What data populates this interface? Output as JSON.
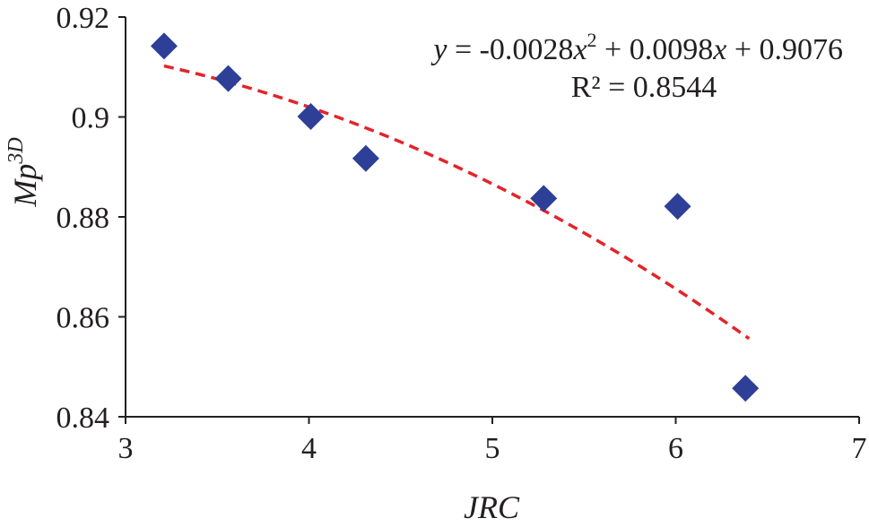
{
  "chart_data": {
    "type": "scatter",
    "xlabel": "JRC",
    "ylabel": {
      "base": "Mp",
      "sup": "3D"
    },
    "xlim": [
      3,
      7
    ],
    "ylim": [
      0.84,
      0.92
    ],
    "x_ticks": [
      "3",
      "4",
      "5",
      "6",
      "7"
    ],
    "y_ticks": [
      "0.84",
      "0.86",
      "0.88",
      "0.9",
      "0.92"
    ],
    "grid": false,
    "series": [
      {
        "marker": "diamond",
        "color": "#2e3f97",
        "points": [
          {
            "x": 3.21,
            "y": 0.9142
          },
          {
            "x": 3.56,
            "y": 0.9077
          },
          {
            "x": 4.01,
            "y": 0.9001
          },
          {
            "x": 4.31,
            "y": 0.8917
          },
          {
            "x": 5.28,
            "y": 0.8837
          },
          {
            "x": 6.01,
            "y": 0.8821
          },
          {
            "x": 6.38,
            "y": 0.8457
          }
        ]
      }
    ],
    "trendline": {
      "kind": "polynomial",
      "color": "#e3242b",
      "style": "dashed",
      "coefficients": [
        -0.0028,
        0.0098,
        0.9076
      ],
      "x_range": [
        3.21,
        6.4
      ],
      "equation": {
        "y": "y",
        "eq_left": " = -0.0028",
        "x1": "x",
        "sup": "2",
        "mid": " + 0.0098",
        "x2": "x",
        "tail": " + 0.9076"
      },
      "r2_label": "R² = 0.8544"
    },
    "axis_color": "#231f20"
  }
}
